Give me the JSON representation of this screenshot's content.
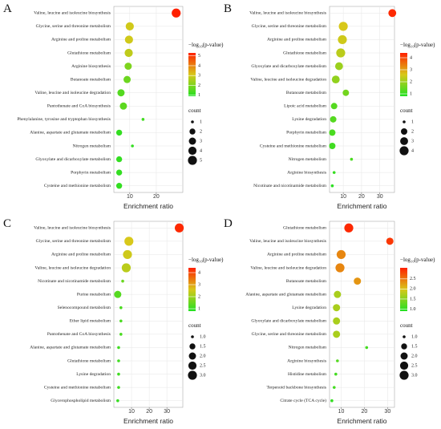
{
  "chart_data": [
    {
      "type": "bubble",
      "label": "A",
      "x_label": "Enrichment ratio",
      "categories": [
        "Valine, leucine and isoleucine biosynthesis",
        "Glycine, serine and threonine metabolism",
        "Arginine and proline metabolism",
        "Glutathione metabolism",
        "Arginine biosynthesis",
        "Butanoate metabolism",
        "Valine, leucine and isoleucine degradation",
        "Pantothenate and CoA biosynthesis",
        "Phenylalanine, tyrosine and tryptophan biosynthesis",
        "Alanine, aspartate and glutamate metabolism",
        "Nitrogen metabolism",
        "Glyoxylate and dicarboxylate metabolism",
        "Porphyrin metabolism",
        "Cysteine and methionine metabolism"
      ],
      "values": [
        27.5,
        10,
        9.7,
        9.6,
        9.4,
        9,
        6.7,
        7.6,
        15,
        6,
        11,
        6,
        6,
        6
      ],
      "count": [
        5,
        4,
        4,
        4,
        3,
        3,
        3,
        3,
        1,
        2,
        1,
        2,
        2,
        2
      ],
      "neglog10p": [
        5.3,
        3,
        3,
        2.8,
        2,
        1.8,
        1.5,
        1.6,
        1.3,
        1.1,
        1.1,
        1.1,
        1.1,
        1.1
      ],
      "xlim": [
        4,
        30
      ],
      "xticks": [
        10,
        20
      ],
      "grid": true,
      "color_title": "−log₁₀(p-value)",
      "clim": [
        0.9,
        5.3
      ],
      "cticks": [
        1,
        2,
        3,
        4,
        5
      ],
      "colors": [
        "#22e022",
        "#d8c81a",
        "#ff2000"
      ],
      "size_title": "count",
      "slim": [
        1,
        5
      ],
      "sticks": [
        1,
        2,
        3,
        4,
        5
      ]
    },
    {
      "type": "bubble",
      "label": "B",
      "x_label": "Enrichment ratio",
      "categories": [
        "Valine, leucine and isoleucine biosynthesis",
        "Glycine, serine and threonine metabolism",
        "Arginine and proline metabolism",
        "Glutathione metabolism",
        "Glyoxylate and dicarboxylate metabolism",
        "Valine, leucine and isoleucine degradation",
        "Butanoate metabolism",
        "Lipoic acid metabolism",
        "Lysine degradation",
        "Porphyrin metabolism",
        "Cysteine and methionine metabolism",
        "Nitrogen metabolism",
        "Arginine biosynthesis",
        "Nicotinate and nicotinamide metabolism"
      ],
      "values": [
        36.8,
        10,
        9.5,
        8.6,
        7.7,
        5.9,
        11.4,
        5,
        4.5,
        4,
        4,
        14.5,
        5,
        4
      ],
      "count": [
        3,
        4,
        4,
        4,
        3,
        3,
        2,
        2,
        2,
        2,
        2,
        1,
        1,
        1
      ],
      "neglog10p": [
        4.3,
        2.6,
        2.5,
        2.3,
        2,
        1.9,
        1.6,
        1.3,
        1.3,
        1.2,
        1.1,
        1.2,
        1,
        0.9
      ],
      "xlim": [
        2.5,
        38
      ],
      "xticks": [
        10,
        20,
        30
      ],
      "grid": true,
      "color_title": "−log₁₀(p-value)",
      "clim": [
        0.8,
        4.4
      ],
      "cticks": [
        1,
        2,
        3,
        4
      ],
      "colors": [
        "#22e022",
        "#d8c81a",
        "#ff2000"
      ],
      "size_title": "count",
      "slim": [
        1,
        4
      ],
      "sticks": [
        1,
        2,
        3,
        4
      ]
    },
    {
      "type": "bubble",
      "label": "C",
      "x_label": "Enrichment ratio",
      "categories": [
        "Valine, leucine and isoleucine biosynthesis",
        "Glycine, serine and threonine metabolism",
        "Arginine and proline metabolism",
        "Valine, leucine and isoleucine degradation",
        "Nicotinate and nicotinamide metabolism",
        "Purine metabolism",
        "Selenocompound metabolism",
        "Ether lipid metabolism",
        "Pantothenate and CoA biosynthesis",
        "Alanine, aspartate and glutamate metabolism",
        "Glutathione metabolism",
        "Lysine degradation",
        "Cysteine and methionine metabolism",
        "Glycerophospholipid metabolism"
      ],
      "values": [
        37,
        8.5,
        7.7,
        7,
        5,
        2.2,
        4,
        4,
        4,
        2.7,
        2.7,
        2.7,
        2.7,
        2.2
      ],
      "count": [
        3,
        3,
        3,
        3,
        1,
        2,
        1,
        1,
        1,
        1,
        1,
        1,
        1,
        1
      ],
      "neglog10p": [
        4.3,
        2.6,
        2.5,
        2.3,
        1.5,
        1.3,
        1.2,
        1.2,
        1.2,
        1.1,
        1.1,
        1.1,
        1.1,
        1
      ],
      "xlim": [
        0,
        39
      ],
      "xticks": [
        10,
        20,
        30
      ],
      "grid": true,
      "color_title": "−log₁₀(p-value)",
      "clim": [
        0.8,
        4.4
      ],
      "cticks": [
        1,
        2,
        3,
        4
      ],
      "colors": [
        "#22e022",
        "#d8c81a",
        "#ff2000"
      ],
      "size_title": "count",
      "slim": [
        1,
        3
      ],
      "sticks": [
        {
          "value": 1,
          "label": "1.0"
        },
        {
          "value": 1.5,
          "label": "1.5"
        },
        {
          "value": 2,
          "label": "2.0"
        },
        {
          "value": 2.5,
          "label": "2.5"
        },
        {
          "value": 3,
          "label": "3.0"
        }
      ]
    },
    {
      "type": "bubble",
      "label": "D",
      "x_label": "Enrichment ratio",
      "categories": [
        "Glutathione metabolism",
        "Valine, leucine and isoleucine biosynthesis",
        "Arginine and proline metabolism",
        "Valine, leucine and isoleucine degradation",
        "Butanoate metabolism",
        "Alanine, aspartate and glutamate metabolism",
        "Lysine degradation",
        "Glyoxylate and dicarboxylate metabolism",
        "Glycine, serine and threonine metabolism",
        "Nitrogen metabolism",
        "Arginine biosynthesis",
        "Histidine metabolism",
        "Terpenoid backbone biosynthesis",
        "Citrate cycle (TCA cycle)"
      ],
      "values": [
        13.3,
        31,
        10,
        9.5,
        17,
        8.4,
        8,
        8,
        8,
        21,
        8.4,
        7.7,
        7,
        6
      ],
      "count": [
        3,
        2,
        3,
        3,
        2,
        2,
        2,
        2,
        2,
        1,
        1,
        1,
        1,
        1
      ],
      "neglog10p": [
        3,
        2.9,
        2.4,
        2.4,
        2.3,
        1.7,
        1.7,
        1.7,
        1.7,
        1.1,
        1.2,
        1.1,
        1.1,
        1
      ],
      "xlim": [
        5,
        33
      ],
      "xticks": [
        10,
        20,
        30
      ],
      "grid": true,
      "color_title": "−log₁₀(p-value)",
      "clim": [
        0.9,
        3.05
      ],
      "cticks": [
        {
          "value": 1,
          "label": "1.0"
        },
        {
          "value": 1.5,
          "label": "1.5"
        },
        {
          "value": 2,
          "label": "2.0"
        },
        {
          "value": 2.5,
          "label": "2.5"
        }
      ],
      "colors": [
        "#22e022",
        "#d8c81a",
        "#ff2000"
      ],
      "size_title": "count",
      "slim": [
        1,
        3
      ],
      "sticks": [
        {
          "value": 1,
          "label": "1.0"
        },
        {
          "value": 1.5,
          "label": "1.5"
        },
        {
          "value": 2,
          "label": "2.0"
        },
        {
          "value": 2.5,
          "label": "2.5"
        },
        {
          "value": 3,
          "label": "3.0"
        }
      ]
    }
  ]
}
